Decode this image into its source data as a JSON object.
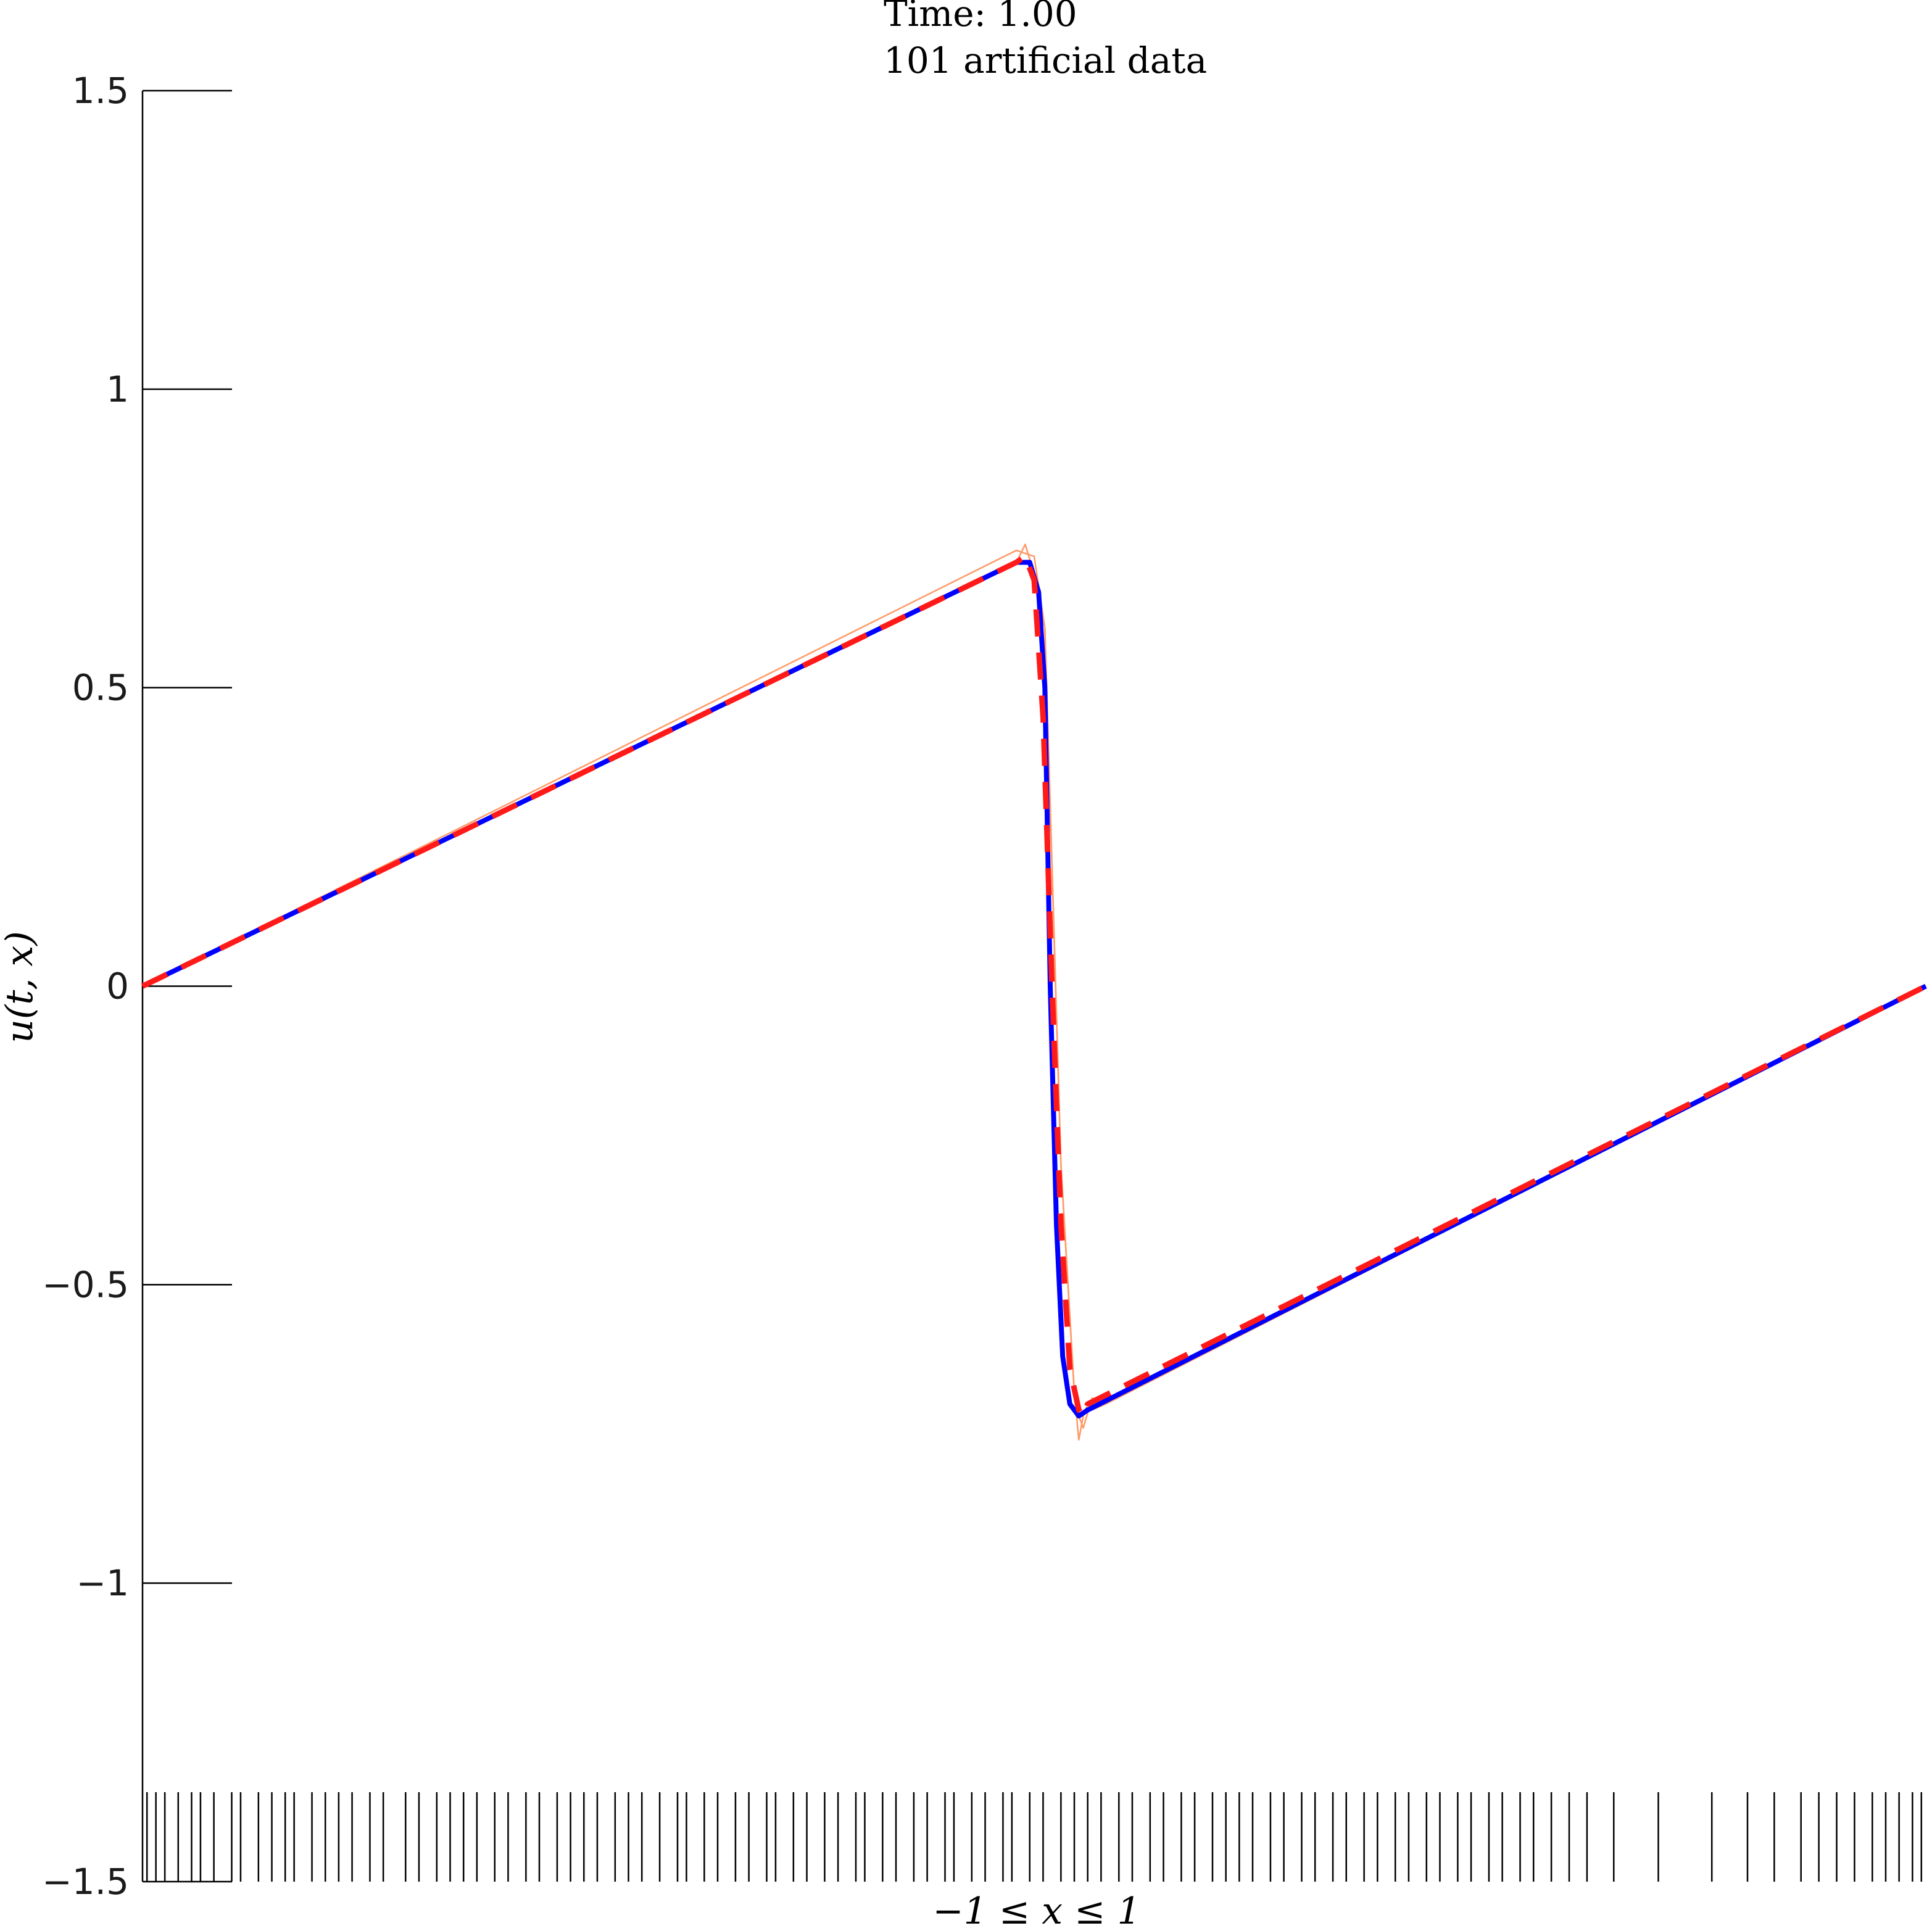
{
  "chart_data": {
    "type": "line",
    "title": [
      "Time: 1.00",
      "101 artificial data"
    ],
    "title_line1": "Time: 1.00",
    "title_line2": "101 artificial data",
    "xlabel": "−1 ≤ x ≤ 1",
    "ylabel": "u(t, x)",
    "xlim": [
      -1,
      1
    ],
    "ylim": [
      -1.5,
      1.5
    ],
    "yticks": [
      -1.5,
      -1,
      -0.5,
      0,
      0.5,
      1,
      1.5
    ],
    "ytick_labels": [
      "−1.5",
      "−1",
      "−0.5",
      "0",
      "0.5",
      "1",
      "1.5"
    ],
    "grid": false,
    "series": [
      {
        "color": "#ff9966",
        "style": "thin-solid",
        "x": [
          -1,
          -0.02,
          0.0,
          0.012,
          0.02,
          0.03,
          0.045,
          0.05,
          0.055,
          0.06,
          0.065,
          0.08,
          1
        ],
        "y": [
          0,
          0.73,
          0.72,
          0.6,
          0.2,
          -0.3,
          -0.68,
          -0.76,
          -0.72,
          -0.7,
          -0.71,
          -0.7,
          0
        ]
      },
      {
        "color": "#ff9966",
        "style": "thin-solid",
        "x": [
          -1,
          -0.02,
          -0.01,
          0.0,
          0.012,
          0.02,
          0.03,
          0.045,
          0.05,
          0.055,
          0.065,
          0.08,
          1
        ],
        "y": [
          0,
          0.71,
          0.74,
          0.69,
          0.6,
          0.2,
          -0.3,
          -0.68,
          -0.72,
          -0.74,
          -0.69,
          -0.7,
          0
        ]
      },
      {
        "color": "#0000ff",
        "style": "thick-solid",
        "x": [
          -1,
          -0.02,
          -0.005,
          0.005,
          0.012,
          0.018,
          0.025,
          0.032,
          0.04,
          0.05,
          0.06,
          1
        ],
        "y": [
          0,
          0.71,
          0.71,
          0.66,
          0.5,
          0.0,
          -0.4,
          -0.62,
          -0.7,
          -0.72,
          -0.71,
          0
        ]
      },
      {
        "color": "#ff1a1a",
        "style": "thick-dashed",
        "x": [
          -1,
          -0.02,
          -0.01,
          0.0,
          0.01,
          0.02,
          0.03,
          0.04,
          0.05,
          0.055,
          0.06,
          1
        ],
        "y": [
          0,
          0.71,
          0.72,
          0.68,
          0.45,
          0.0,
          -0.4,
          -0.64,
          -0.71,
          -0.72,
          -0.7,
          0
        ]
      }
    ],
    "data_points_x": [
      -0.995,
      -0.985,
      -0.975,
      -0.96,
      -0.945,
      -0.935,
      -0.92,
      -0.9,
      -0.89,
      -0.87,
      -0.855,
      -0.84,
      -0.83,
      -0.81,
      -0.795,
      -0.78,
      -0.765,
      -0.745,
      -0.73,
      -0.705,
      -0.69,
      -0.67,
      -0.655,
      -0.64,
      -0.625,
      -0.605,
      -0.59,
      -0.57,
      -0.555,
      -0.535,
      -0.52,
      -0.505,
      -0.49,
      -0.47,
      -0.455,
      -0.44,
      -0.42,
      -0.4,
      -0.39,
      -0.37,
      -0.355,
      -0.335,
      -0.32,
      -0.3,
      -0.29,
      -0.27,
      -0.255,
      -0.235,
      -0.22,
      -0.2,
      -0.19,
      -0.17,
      -0.155,
      -0.135,
      -0.12,
      -0.1,
      -0.09,
      -0.07,
      -0.055,
      -0.035,
      -0.025,
      -0.005,
      0.01,
      0.03,
      0.045,
      0.06,
      0.075,
      0.095,
      0.11,
      0.13,
      0.145,
      0.165,
      0.18,
      0.2,
      0.215,
      0.23,
      0.245,
      0.265,
      0.28,
      0.3,
      0.315,
      0.335,
      0.35,
      0.37,
      0.385,
      0.405,
      0.42,
      0.44,
      0.455,
      0.475,
      0.49,
      0.51,
      0.525,
      0.545,
      0.56,
      0.58,
      0.6,
      0.62,
      0.65,
      0.7,
      0.76
    ]
  }
}
